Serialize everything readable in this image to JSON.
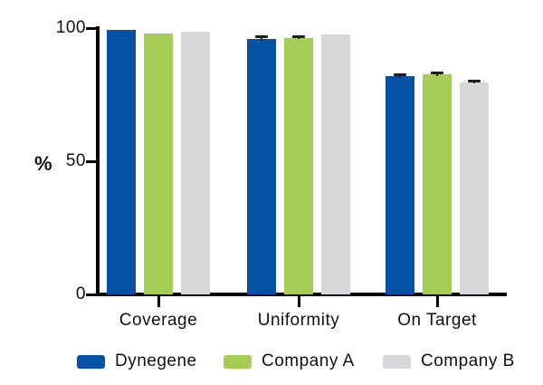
{
  "chart_data": {
    "type": "bar",
    "title": "",
    "ylabel": "%",
    "ylim": [
      0,
      100
    ],
    "yticks": [
      0,
      50,
      100
    ],
    "grid": false,
    "legend_position": "bottom",
    "categories": [
      "Coverage",
      "Uniformity",
      "On Target"
    ],
    "series": [
      {
        "name": "Dynegene",
        "color": "#0551a5",
        "values": [
          99.2,
          96.0,
          81.9
        ],
        "errors": [
          0,
          0.6,
          0.5
        ]
      },
      {
        "name": "Company A",
        "color": "#a5cd55",
        "values": [
          98.1,
          96.4,
          82.6
        ],
        "errors": [
          0,
          0.5,
          0.5
        ]
      },
      {
        "name": "Company B",
        "color": "#d8d8da",
        "values": [
          98.6,
          97.7,
          79.6
        ],
        "errors": [
          0,
          0,
          0.4
        ]
      }
    ],
    "axis_color": "#000000",
    "error_bar_color": "#1f1f1f",
    "text_color": "#111111"
  }
}
